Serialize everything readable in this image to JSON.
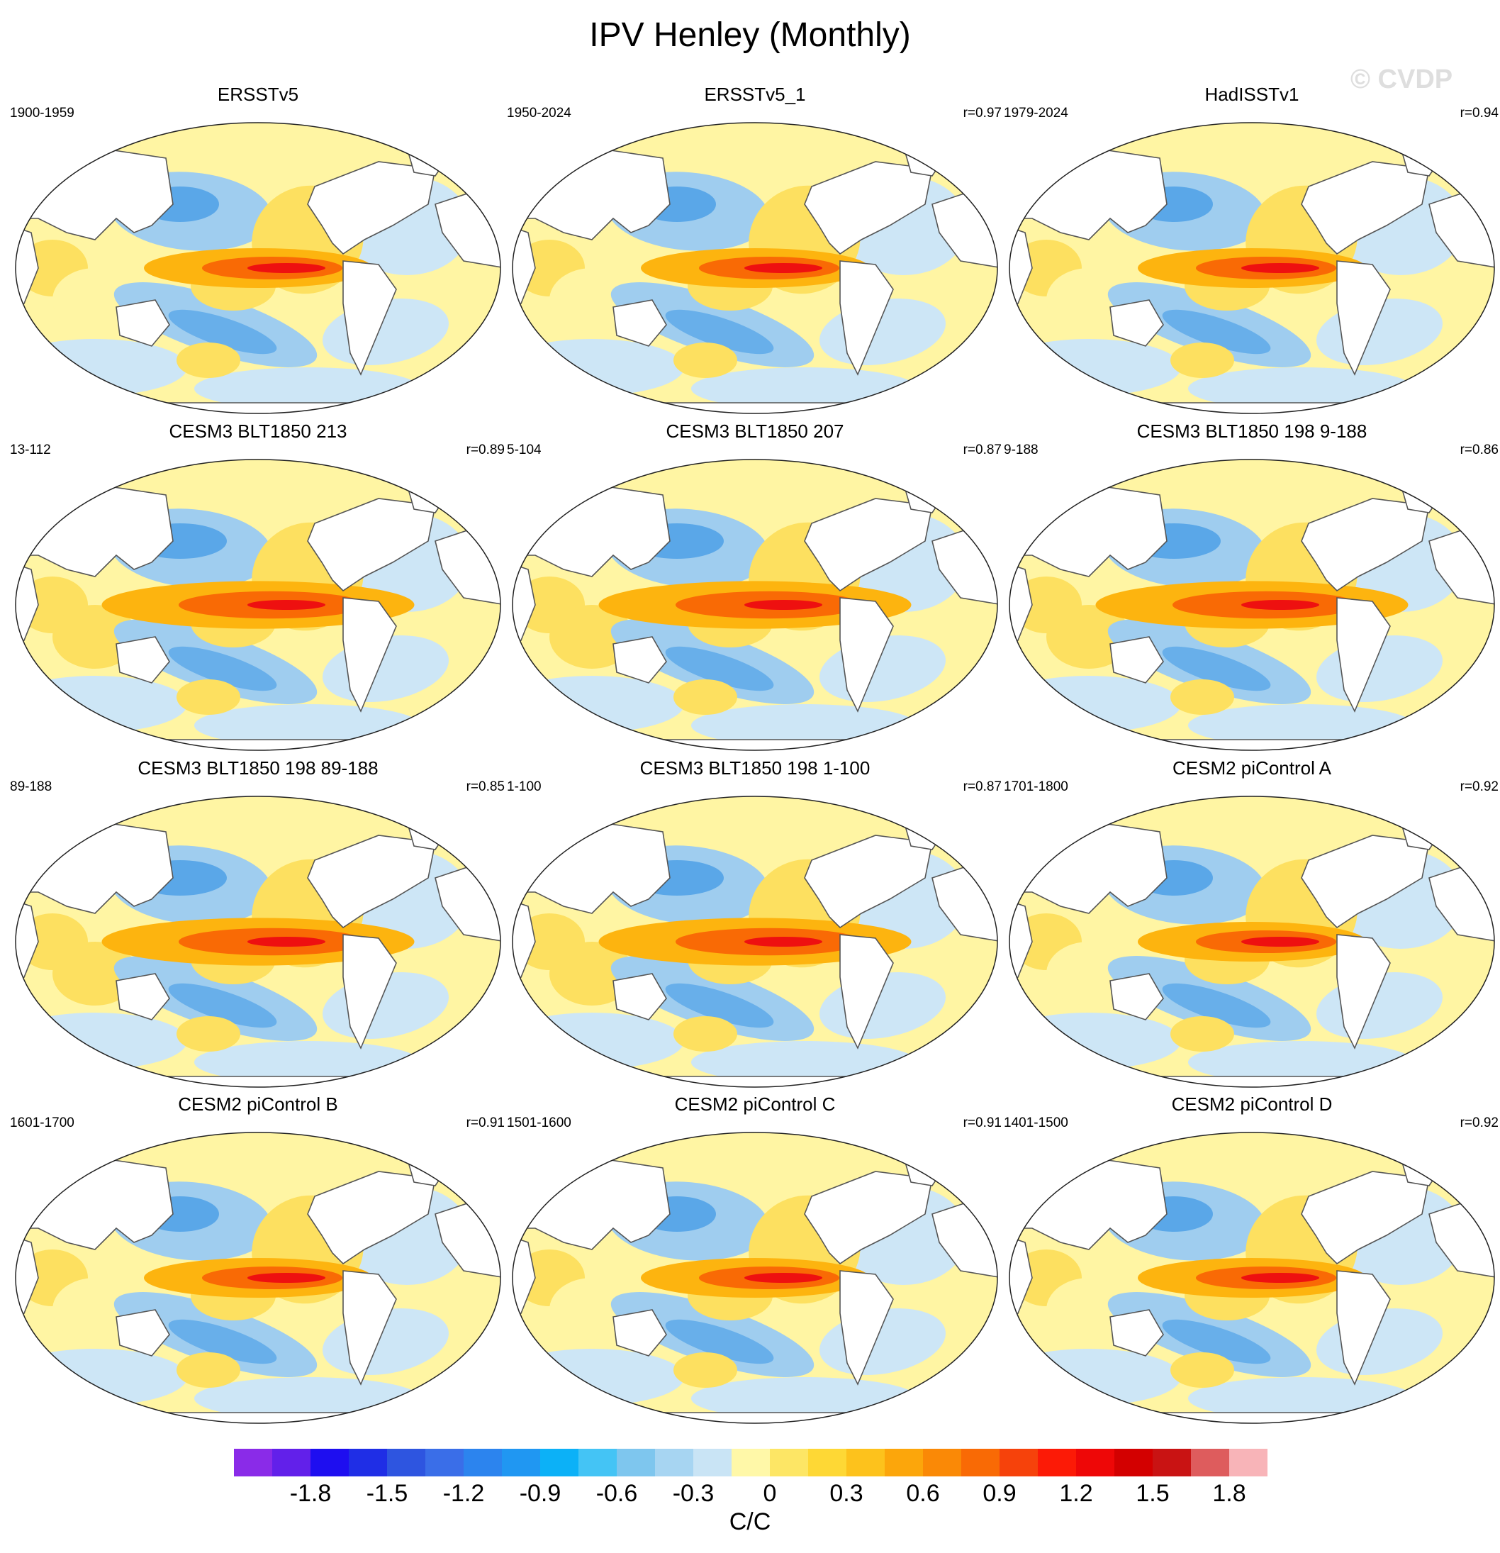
{
  "title": "IPV Henley (Monthly)",
  "watermark": "© CVDP",
  "panels": [
    {
      "title": "ERSSTv5",
      "period": "1900-1959",
      "corr": ""
    },
    {
      "title": "ERSSTv5_1",
      "period": "1950-2024",
      "corr": "r=0.97"
    },
    {
      "title": "HadISSTv1",
      "period": "1979-2024",
      "corr": "r=0.94"
    },
    {
      "title": "CESM3 BLT1850 213",
      "period": "13-112",
      "corr": "r=0.89"
    },
    {
      "title": "CESM3 BLT1850 207",
      "period": "5-104",
      "corr": "r=0.87"
    },
    {
      "title": "CESM3 BLT1850 198 9-188",
      "period": "9-188",
      "corr": "r=0.86"
    },
    {
      "title": "CESM3 BLT1850 198 89-188",
      "period": "89-188",
      "corr": "r=0.85"
    },
    {
      "title": "CESM3 BLT1850 198 1-100",
      "period": "1-100",
      "corr": "r=0.87"
    },
    {
      "title": "CESM2 piControl A",
      "period": "1701-1800",
      "corr": "r=0.92"
    },
    {
      "title": "CESM2 piControl B",
      "period": "1601-1700",
      "corr": "r=0.91"
    },
    {
      "title": "CESM2 piControl C",
      "period": "1501-1600",
      "corr": "r=0.91"
    },
    {
      "title": "CESM2 piControl D",
      "period": "1401-1500",
      "corr": "r=0.92"
    }
  ],
  "colorbar": {
    "units": "C/C",
    "tick_labels": [
      "-1.8",
      "-1.5",
      "-1.2",
      "-0.9",
      "-0.6",
      "-0.3",
      "0",
      "0.3",
      "0.6",
      "0.9",
      "1.2",
      "1.5",
      "1.8"
    ],
    "tick_values": [
      -1.8,
      -1.5,
      -1.2,
      -0.9,
      -0.6,
      -0.3,
      0,
      0.3,
      0.6,
      0.9,
      1.2,
      1.5,
      1.8
    ],
    "min": -2.1,
    "max": 2.1,
    "step": 0.15,
    "colors": [
      "#8a2be8",
      "#6220ea",
      "#1e0ef0",
      "#1f2ee6",
      "#2e55e0",
      "#3a6ee8",
      "#2c84ee",
      "#2097f2",
      "#0cb1f7",
      "#44c4f5",
      "#7ec6ee",
      "#a7d5f2",
      "#c9e4f5",
      "#fff8a8",
      "#fde665",
      "#fed835",
      "#fdc21c",
      "#fca60b",
      "#fa8906",
      "#f96a05",
      "#f6420b",
      "#fc1a06",
      "#ee0707",
      "#d30000",
      "#c91313",
      "#de5c5d",
      "#f8b4b8"
    ]
  },
  "colors": {
    "land": "#ffffff",
    "coast": "#555555",
    "weak_pos": "#fff5a3",
    "pos": "#fde060",
    "warm": "#fdb40f",
    "hot": "#f96a05",
    "core": "#ee1010",
    "weak_neg": "#cde6f6",
    "neg": "#9fcdef",
    "cold": "#5aa7e8"
  }
}
